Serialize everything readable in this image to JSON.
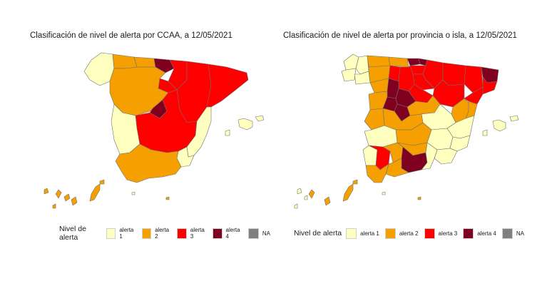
{
  "colors": {
    "alerta_1": "#ffffc0",
    "alerta_2": "#f5a000",
    "alerta_3": "#ff0000",
    "alerta_4": "#800020",
    "na": "#808080",
    "border": "#707070"
  },
  "left_map": {
    "title": "Clasificación de nivel de alerta por CCAA, a 12/05/2021",
    "regions": [
      {
        "name": "Galicia",
        "level": "alerta_1"
      },
      {
        "name": "Asturias",
        "level": "alerta_2"
      },
      {
        "name": "Cantabria",
        "level": "alerta_2"
      },
      {
        "name": "País Vasco",
        "level": "alerta_4"
      },
      {
        "name": "Navarra",
        "level": "alerta_3"
      },
      {
        "name": "La Rioja",
        "level": "alerta_3"
      },
      {
        "name": "Aragón",
        "level": "alerta_3"
      },
      {
        "name": "Cataluña",
        "level": "alerta_3"
      },
      {
        "name": "Castilla y León",
        "level": "alerta_2"
      },
      {
        "name": "Madrid",
        "level": "alerta_4"
      },
      {
        "name": "Castilla-La Mancha",
        "level": "alerta_3"
      },
      {
        "name": "Extremadura",
        "level": "alerta_1"
      },
      {
        "name": "Comunidad Valenciana",
        "level": "alerta_1"
      },
      {
        "name": "Murcia",
        "level": "alerta_1"
      },
      {
        "name": "Andalucía",
        "level": "alerta_2"
      },
      {
        "name": "Baleares",
        "level": "alerta_1"
      },
      {
        "name": "Canarias",
        "level": "alerta_2"
      },
      {
        "name": "Ceuta",
        "level": "alerta_1"
      },
      {
        "name": "Melilla",
        "level": "alerta_2"
      }
    ]
  },
  "right_map": {
    "title": "Clasificación de nivel de alerta por provincia o isla, a 12/05/2021"
  },
  "legend": {
    "title": "Nivel de alerta",
    "items": [
      {
        "label": "alerta 1",
        "level": "alerta_1"
      },
      {
        "label": "alerta 2",
        "level": "alerta_2"
      },
      {
        "label": "alerta 3",
        "level": "alerta_3"
      },
      {
        "label": "alerta 4",
        "level": "alerta_4"
      },
      {
        "label": "NA",
        "level": "na"
      }
    ]
  }
}
